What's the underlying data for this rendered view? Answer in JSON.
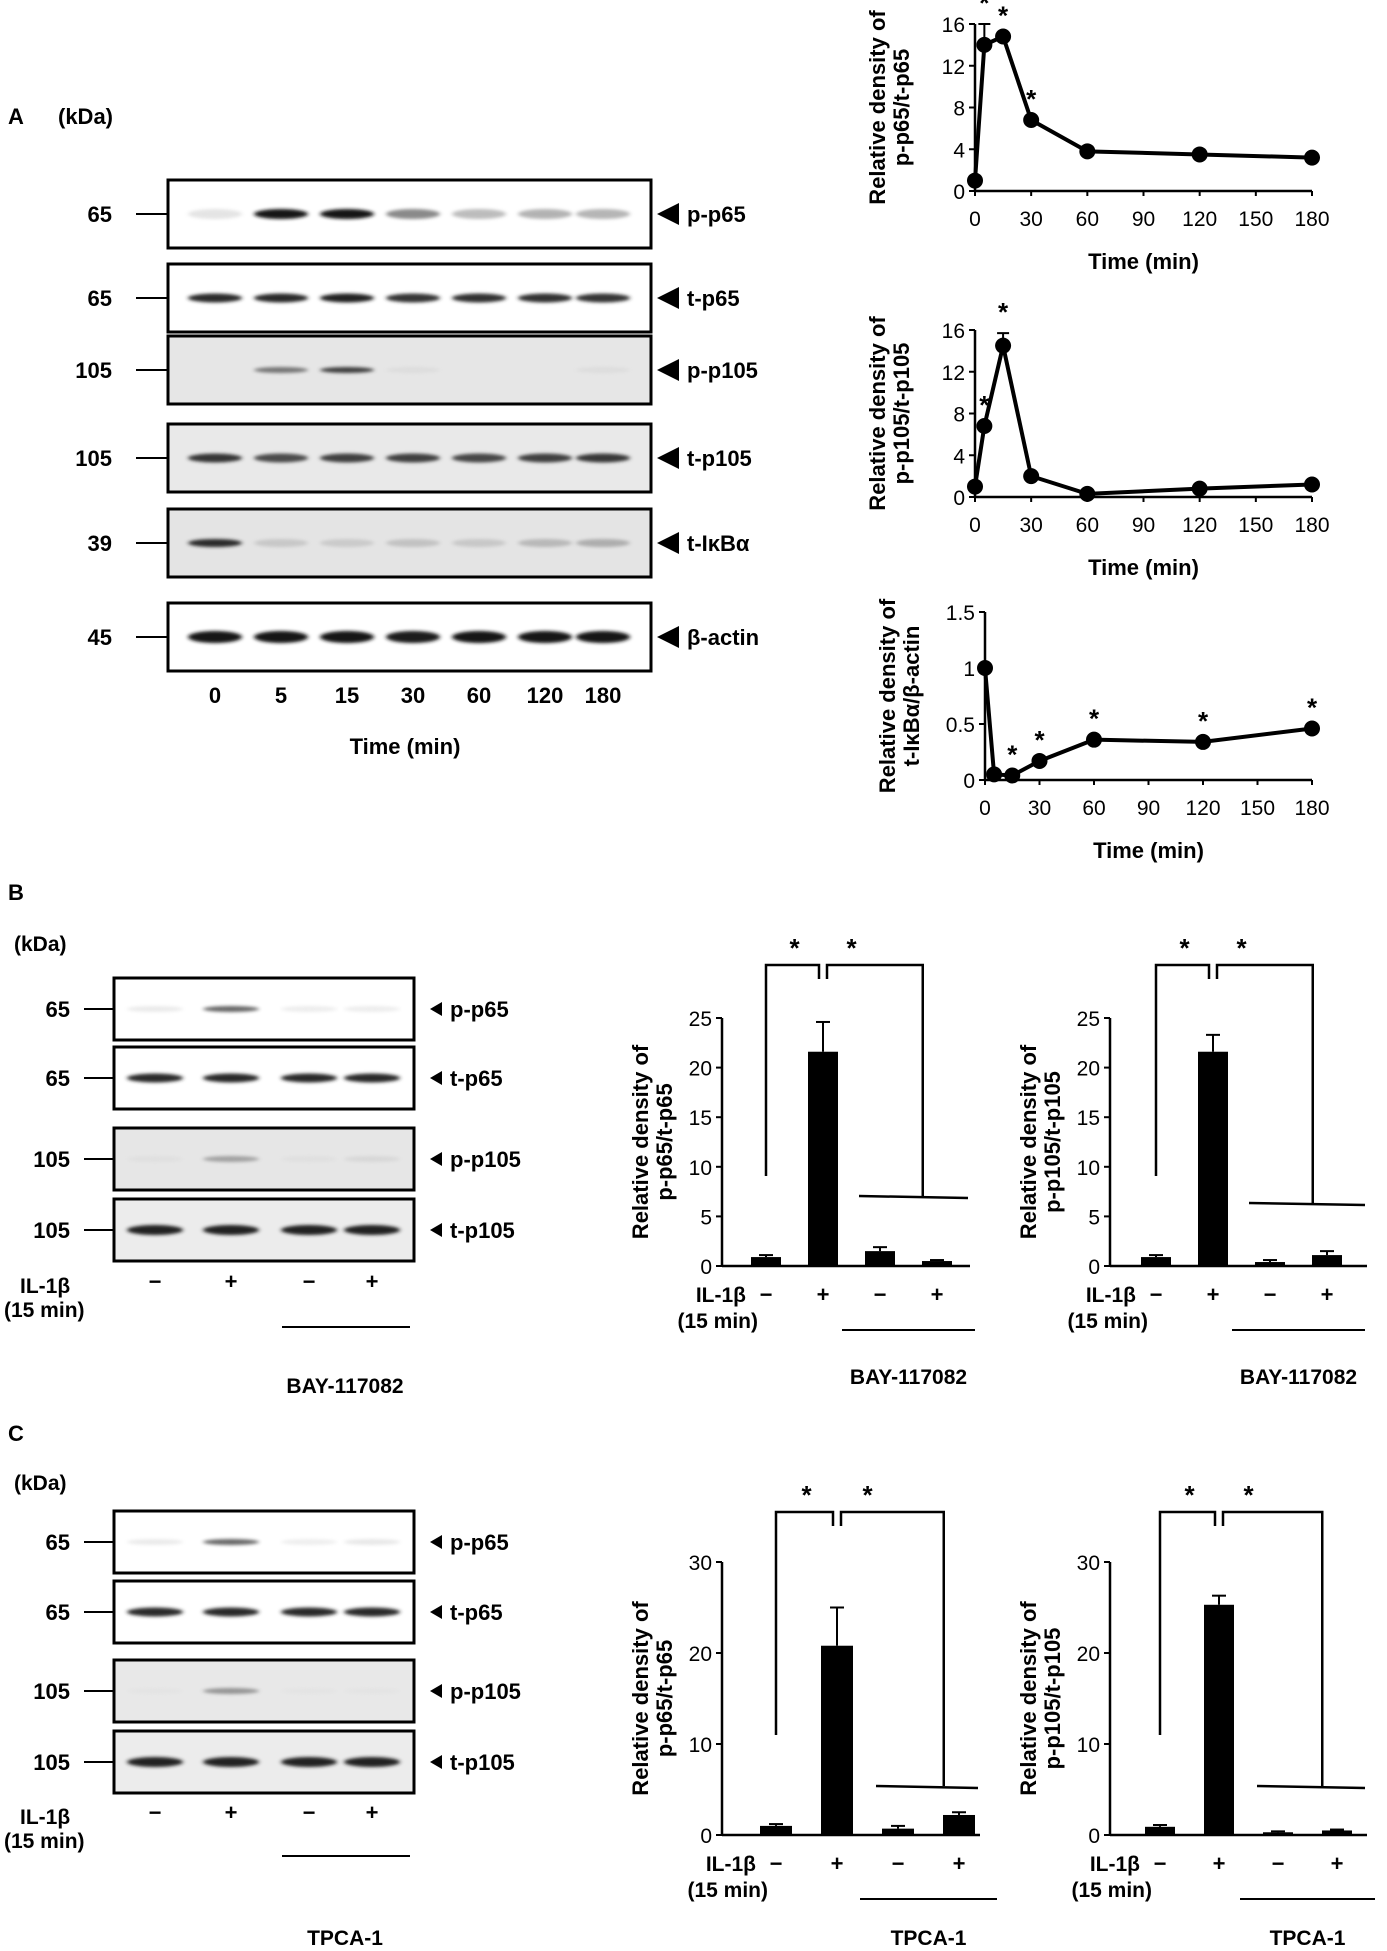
{
  "panelA": {
    "letter": "A",
    "kda": "(kDa)",
    "lanes": [
      "0",
      "5",
      "15",
      "30",
      "60",
      "120",
      "180"
    ],
    "time_label": "Time (min)",
    "blots": [
      {
        "mw": "65",
        "label": "p-p65",
        "bg": "#ffffff",
        "int": [
          0.12,
          0.95,
          0.95,
          0.5,
          0.32,
          0.36,
          0.35
        ],
        "bh": 10
      },
      {
        "mw": "65",
        "label": "t-p65",
        "bg": "#ffffff",
        "int": [
          0.85,
          0.85,
          0.88,
          0.8,
          0.82,
          0.82,
          0.8
        ],
        "bh": 9
      },
      {
        "mw": "105",
        "label": "p-p105",
        "bg": "#e6e6e6",
        "int": [
          0.0,
          0.55,
          0.75,
          0.08,
          0.0,
          0.0,
          0.08
        ],
        "bh": 6
      },
      {
        "mw": "105",
        "label": "t-p105",
        "bg": "#e9e9e9",
        "int": [
          0.8,
          0.7,
          0.75,
          0.75,
          0.72,
          0.75,
          0.78
        ],
        "bh": 9
      },
      {
        "mw": "39",
        "label": "t-IκBα",
        "bg": "#e4e4e4",
        "int": [
          0.85,
          0.22,
          0.2,
          0.25,
          0.22,
          0.3,
          0.35
        ],
        "bh": 8
      },
      {
        "mw": "45",
        "label": "β-actin",
        "bg": "#ffffff",
        "int": [
          0.95,
          0.95,
          0.95,
          0.92,
          0.95,
          0.95,
          0.95
        ],
        "bh": 12
      }
    ]
  },
  "panelB": {
    "letter": "B",
    "kda": "(kDa)",
    "blots": [
      {
        "mw": "65",
        "label": "p-p65",
        "bg": "#ffffff",
        "int": [
          0.08,
          0.6,
          0.06,
          0.06
        ],
        "bh": 6
      },
      {
        "mw": "65",
        "label": "t-p65",
        "bg": "#ffffff",
        "int": [
          0.85,
          0.85,
          0.85,
          0.85
        ],
        "bh": 9
      },
      {
        "mw": "105",
        "label": "p-p105",
        "bg": "#e6e6e6",
        "int": [
          0.05,
          0.4,
          0.05,
          0.12
        ],
        "bh": 6
      },
      {
        "mw": "105",
        "label": "t-p105",
        "bg": "#ececec",
        "int": [
          0.9,
          0.88,
          0.88,
          0.88
        ],
        "bh": 10
      }
    ],
    "il_label": "IL-1β",
    "il_time": "(15 min)",
    "signs": [
      "−",
      "+",
      "−",
      "+"
    ],
    "inhibitor": "BAY-117082"
  },
  "panelC": {
    "letter": "C",
    "kda": "(kDa)",
    "blots": [
      {
        "mw": "65",
        "label": "p-p65",
        "bg": "#ffffff",
        "int": [
          0.08,
          0.6,
          0.05,
          0.1
        ],
        "bh": 6
      },
      {
        "mw": "65",
        "label": "t-p65",
        "bg": "#ffffff",
        "int": [
          0.85,
          0.85,
          0.85,
          0.85
        ],
        "bh": 9
      },
      {
        "mw": "105",
        "label": "p-p105",
        "bg": "#e8e8e8",
        "int": [
          0.02,
          0.45,
          0.02,
          0.02
        ],
        "bh": 6
      },
      {
        "mw": "105",
        "label": "t-p105",
        "bg": "#ececec",
        "int": [
          0.9,
          0.88,
          0.88,
          0.88
        ],
        "bh": 10
      }
    ],
    "il_label": "IL-1β",
    "il_time": "(15 min)",
    "signs": [
      "−",
      "+",
      "−",
      "+"
    ],
    "inhibitor": "TPCA-1"
  },
  "chart_data": [
    {
      "id": "A1",
      "type": "line",
      "x": [
        0,
        5,
        15,
        30,
        60,
        120,
        180
      ],
      "y": [
        1,
        14,
        14.8,
        6.8,
        3.8,
        3.5,
        3.2
      ],
      "err": [
        0,
        2.0,
        0,
        0,
        0,
        0,
        0
      ],
      "stars": [
        0,
        1,
        1,
        1,
        0,
        0,
        0
      ],
      "ylabel": [
        "Relative density of",
        "p-p65/t-p65"
      ],
      "xlabel": "Time (min)",
      "xticks": [
        0,
        30,
        60,
        90,
        120,
        150,
        180
      ],
      "yticks": [
        0,
        4,
        8,
        12,
        16
      ],
      "ylim": [
        0,
        16
      ]
    },
    {
      "id": "A2",
      "type": "line",
      "x": [
        0,
        5,
        15,
        30,
        60,
        120,
        180
      ],
      "y": [
        1,
        6.8,
        14.5,
        2,
        0.3,
        0.8,
        1.2
      ],
      "err": [
        0,
        0,
        1.2,
        0,
        0,
        0,
        0
      ],
      "stars": [
        0,
        1,
        1,
        0,
        0,
        0,
        0
      ],
      "ylabel": [
        "Relative density of",
        "p-p105/t-p105"
      ],
      "xlabel": "Time (min)",
      "xticks": [
        0,
        30,
        60,
        90,
        120,
        150,
        180
      ],
      "yticks": [
        0,
        4,
        8,
        12,
        16
      ],
      "ylim": [
        0,
        16
      ]
    },
    {
      "id": "A3",
      "type": "line",
      "x": [
        0,
        5,
        15,
        30,
        60,
        120,
        180
      ],
      "y": [
        1,
        0.05,
        0.04,
        0.17,
        0.36,
        0.34,
        0.46
      ],
      "err": [
        0,
        0,
        0,
        0,
        0,
        0,
        0
      ],
      "stars": [
        0,
        0,
        1,
        1,
        1,
        1,
        1
      ],
      "ylabel": [
        "Relative density of",
        "t-IκBα/β-actin"
      ],
      "xlabel": "Time (min)",
      "xticks": [
        0,
        30,
        60,
        90,
        120,
        150,
        180
      ],
      "yticks": [
        0,
        0.5,
        1,
        1.5
      ],
      "ylim": [
        0,
        1.5
      ]
    },
    {
      "id": "B1",
      "type": "bar",
      "values": [
        0.9,
        21.6,
        1.5,
        0.5
      ],
      "err": [
        0.2,
        3.0,
        0.4,
        0.1
      ],
      "signs": [
        "−",
        "+",
        "−",
        "+"
      ],
      "ylabel": [
        "Relative density of",
        "p-p65/t-p65"
      ],
      "yticks": [
        0,
        5,
        10,
        15,
        20,
        25
      ],
      "ylim": [
        0,
        25
      ],
      "il_label": "IL-1β",
      "il_time": "(15 min)",
      "inhibitor": "BAY-117082",
      "sig": [
        "*",
        "*"
      ]
    },
    {
      "id": "B2",
      "type": "bar",
      "values": [
        0.9,
        21.6,
        0.4,
        1.1
      ],
      "err": [
        0.2,
        1.7,
        0.2,
        0.4
      ],
      "signs": [
        "−",
        "+",
        "−",
        "+"
      ],
      "ylabel": [
        "Relative density of",
        "p-p105/t-p105"
      ],
      "yticks": [
        0,
        5,
        10,
        15,
        20,
        25
      ],
      "ylim": [
        0,
        25
      ],
      "il_label": "IL-1β",
      "il_time": "(15 min)",
      "inhibitor": "BAY-117082",
      "sig": [
        "*",
        "*"
      ]
    },
    {
      "id": "C1",
      "type": "bar",
      "values": [
        1.0,
        20.8,
        0.7,
        2.2
      ],
      "err": [
        0.2,
        4.2,
        0.3,
        0.3
      ],
      "signs": [
        "−",
        "+",
        "−",
        "+"
      ],
      "ylabel": [
        "Relative density of",
        "p-p65/t-p65"
      ],
      "yticks": [
        0,
        10,
        20,
        30
      ],
      "ylim": [
        0,
        30
      ],
      "il_label": "IL-1β",
      "il_time": "(15 min)",
      "inhibitor": "TPCA-1",
      "sig": [
        "*",
        "*"
      ]
    },
    {
      "id": "C2",
      "type": "bar",
      "values": [
        0.9,
        25.3,
        0.3,
        0.5
      ],
      "err": [
        0.2,
        1.0,
        0.1,
        0.1
      ],
      "signs": [
        "−",
        "+",
        "−",
        "+"
      ],
      "ylabel": [
        "Relative density of",
        "p-p105/t-p105"
      ],
      "yticks": [
        0,
        10,
        20,
        30
      ],
      "ylim": [
        0,
        30
      ],
      "il_label": "IL-1β",
      "il_time": "(15 min)",
      "inhibitor": "TPCA-1",
      "sig": [
        "*",
        "*"
      ]
    }
  ]
}
